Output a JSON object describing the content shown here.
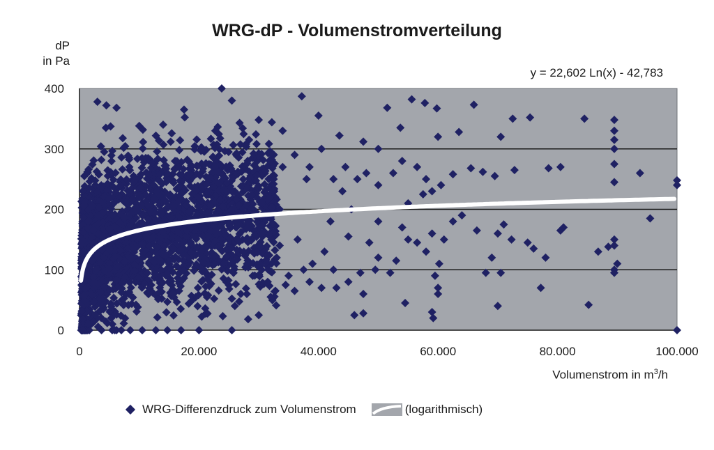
{
  "chart_data": {
    "type": "scatter",
    "title": "WRG-dP - Volumenstromverteilung",
    "ylabel_line1": "dP",
    "ylabel_line2": "in Pa",
    "xlabel_prefix": "Volumenstrom in m",
    "xlabel_sup": "3",
    "xlabel_suffix": "/h",
    "equation": "y = 22,602 Ln(x) - 42,783",
    "x_ticks": [
      0,
      20000,
      40000,
      60000,
      80000,
      100000
    ],
    "x_tick_labels": [
      "0",
      "20.000",
      "40.000",
      "60.000",
      "80.000",
      "100.000"
    ],
    "y_ticks": [
      0,
      100,
      200,
      300,
      400
    ],
    "y_tick_labels": [
      "0",
      "100",
      "200",
      "300",
      "400"
    ],
    "xlim": [
      0,
      100000
    ],
    "ylim": [
      0,
      400
    ],
    "grid": "horizontal",
    "legend_position": "bottom",
    "trendline": {
      "type": "logarithmic",
      "a": 22.602,
      "b": -42.783
    },
    "series": [
      {
        "name": "WRG-Differenzdruck zum Volumenstrom",
        "points": [
          [
            23800,
            400
          ],
          [
            3000,
            378
          ],
          [
            4500,
            372
          ],
          [
            6200,
            368
          ],
          [
            17500,
            365
          ],
          [
            25500,
            380
          ],
          [
            37200,
            387
          ],
          [
            40000,
            355
          ],
          [
            51500,
            368
          ],
          [
            55600,
            382
          ],
          [
            57800,
            376
          ],
          [
            59800,
            367
          ],
          [
            66000,
            373
          ],
          [
            72500,
            350
          ],
          [
            75400,
            352
          ],
          [
            84500,
            350
          ],
          [
            89500,
            348
          ],
          [
            30000,
            348
          ],
          [
            14000,
            340
          ],
          [
            10000,
            338
          ],
          [
            34000,
            330
          ],
          [
            43500,
            322
          ],
          [
            47500,
            312
          ],
          [
            53700,
            335
          ],
          [
            60000,
            320
          ],
          [
            63500,
            328
          ],
          [
            70500,
            320
          ],
          [
            89500,
            330
          ],
          [
            89500,
            315
          ],
          [
            89500,
            300
          ],
          [
            89500,
            275
          ],
          [
            89500,
            245
          ],
          [
            93800,
            260
          ],
          [
            100000,
            248
          ],
          [
            100000,
            240
          ],
          [
            80500,
            270
          ],
          [
            78500,
            268
          ],
          [
            72800,
            265
          ],
          [
            69500,
            255
          ],
          [
            67500,
            262
          ],
          [
            65500,
            268
          ],
          [
            62500,
            258
          ],
          [
            60500,
            240
          ],
          [
            59000,
            230
          ],
          [
            57500,
            225
          ],
          [
            55000,
            210
          ],
          [
            52500,
            260
          ],
          [
            50000,
            300
          ],
          [
            50000,
            240
          ],
          [
            50000,
            180
          ],
          [
            50000,
            120
          ],
          [
            49500,
            100
          ],
          [
            45500,
            200
          ],
          [
            45000,
            155
          ],
          [
            44000,
            230
          ],
          [
            42000,
            180
          ],
          [
            41000,
            130
          ],
          [
            39000,
            110
          ],
          [
            38000,
            250
          ],
          [
            36500,
            150
          ],
          [
            35000,
            90
          ],
          [
            33500,
            200
          ],
          [
            33000,
            120
          ],
          [
            31500,
            80
          ],
          [
            30500,
            160
          ],
          [
            30000,
            25
          ],
          [
            28000,
            60
          ],
          [
            26000,
            40
          ],
          [
            25500,
            0
          ],
          [
            20000,
            0
          ],
          [
            17000,
            0
          ],
          [
            10500,
            0
          ],
          [
            8500,
            0
          ],
          [
            7000,
            0
          ],
          [
            5500,
            10
          ],
          [
            46000,
            25
          ],
          [
            47500,
            28
          ],
          [
            54500,
            45
          ],
          [
            59000,
            30
          ],
          [
            59200,
            20
          ],
          [
            70000,
            40
          ],
          [
            77200,
            70
          ],
          [
            85200,
            42
          ],
          [
            100000,
            0
          ],
          [
            95500,
            185
          ],
          [
            86800,
            130
          ],
          [
            88500,
            138
          ],
          [
            89500,
            150
          ],
          [
            89500,
            140
          ],
          [
            90000,
            110
          ],
          [
            89500,
            100
          ],
          [
            89500,
            95
          ],
          [
            80500,
            165
          ],
          [
            81000,
            170
          ],
          [
            78000,
            120
          ],
          [
            76000,
            135
          ],
          [
            75000,
            145
          ],
          [
            72300,
            150
          ],
          [
            71000,
            175
          ],
          [
            70000,
            160
          ],
          [
            69000,
            120
          ],
          [
            68000,
            95
          ],
          [
            70500,
            95
          ],
          [
            66500,
            165
          ],
          [
            64000,
            190
          ],
          [
            62500,
            180
          ],
          [
            61000,
            150
          ],
          [
            60200,
            110
          ],
          [
            59500,
            90
          ],
          [
            59000,
            160
          ],
          [
            58000,
            130
          ],
          [
            60000,
            70
          ],
          [
            60000,
            60
          ],
          [
            56500,
            145
          ],
          [
            55000,
            150
          ],
          [
            54000,
            170
          ],
          [
            53000,
            115
          ],
          [
            52000,
            95
          ],
          [
            48500,
            145
          ],
          [
            47000,
            95
          ],
          [
            47500,
            60
          ],
          [
            45000,
            80
          ],
          [
            43000,
            70
          ],
          [
            42500,
            100
          ],
          [
            40500,
            70
          ],
          [
            38500,
            80
          ],
          [
            37500,
            100
          ],
          [
            36000,
            65
          ],
          [
            34500,
            75
          ],
          [
            33500,
            140
          ],
          [
            32000,
            55
          ],
          [
            30500,
            100
          ],
          [
            29000,
            90
          ],
          [
            28500,
            110
          ],
          [
            27500,
            130
          ],
          [
            26500,
            150
          ],
          [
            27000,
            60
          ],
          [
            32500,
            250
          ],
          [
            34000,
            270
          ],
          [
            36000,
            290
          ],
          [
            38500,
            270
          ],
          [
            40500,
            300
          ],
          [
            42500,
            250
          ],
          [
            44500,
            270
          ],
          [
            46500,
            250
          ],
          [
            48000,
            260
          ],
          [
            54000,
            280
          ],
          [
            56500,
            270
          ],
          [
            58000,
            250
          ]
        ]
      }
    ]
  }
}
